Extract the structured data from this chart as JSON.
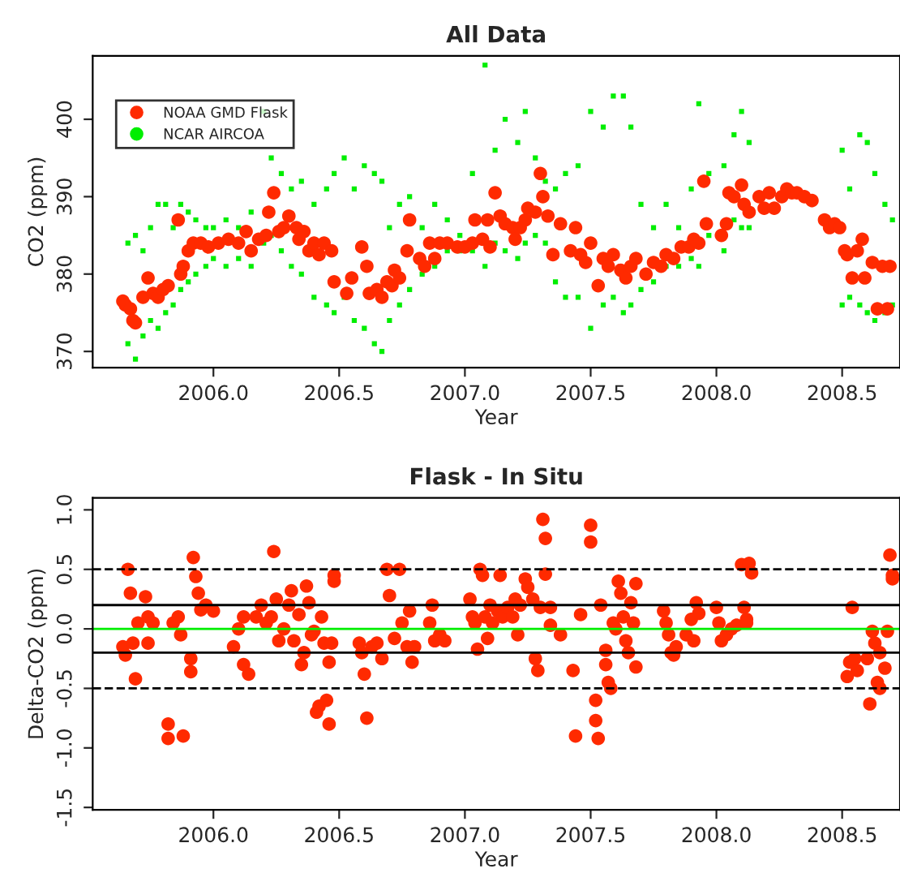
{
  "chart_data": [
    {
      "type": "scatter",
      "title": "All Data",
      "xlabel": "Year",
      "ylabel": "CO2 (ppm)",
      "xlim": [
        2005.52,
        2008.73
      ],
      "ylim": [
        367.9,
        408.2
      ],
      "xticks": [
        {
          "value": 2006.0,
          "label": "2006.0"
        },
        {
          "value": 2006.5,
          "label": "2006.5"
        },
        {
          "value": 2007.0,
          "label": "2007.0"
        },
        {
          "value": 2007.5,
          "label": "2007.5"
        },
        {
          "value": 2008.0,
          "label": "2008.0"
        },
        {
          "value": 2008.5,
          "label": "2008.5"
        }
      ],
      "yticks": [
        370,
        380,
        390,
        400
      ],
      "grid": false,
      "legend": "top left",
      "series": [
        {
          "name": "NCAR AIRCOA",
          "color": "#00ee00",
          "marker": "square",
          "x": [
            2005.66,
            2005.66,
            2005.69,
            2005.69,
            2005.72,
            2005.72,
            2005.75,
            2005.75,
            2005.78,
            2005.78,
            2005.81,
            2005.81,
            2005.84,
            2005.84,
            2005.87,
            2005.87,
            2005.9,
            2005.9,
            2005.93,
            2005.93,
            2005.97,
            2005.97,
            2006.0,
            2006.0,
            2006.05,
            2006.05,
            2006.1,
            2006.1,
            2006.15,
            2006.15,
            2006.2,
            2006.2,
            2006.23,
            2006.23,
            2006.27,
            2006.27,
            2006.31,
            2006.31,
            2006.35,
            2006.35,
            2006.4,
            2006.4,
            2006.45,
            2006.45,
            2006.48,
            2006.48,
            2006.52,
            2006.52,
            2006.56,
            2006.56,
            2006.6,
            2006.6,
            2006.64,
            2006.64,
            2006.67,
            2006.67,
            2006.7,
            2006.7,
            2006.74,
            2006.74,
            2006.78,
            2006.78,
            2006.83,
            2006.83,
            2006.88,
            2006.88,
            2006.93,
            2006.93,
            2006.98,
            2006.98,
            2007.03,
            2007.03,
            2007.08,
            2007.08,
            2007.12,
            2007.12,
            2007.16,
            2007.16,
            2007.21,
            2007.21,
            2007.24,
            2007.24,
            2007.28,
            2007.28,
            2007.32,
            2007.32,
            2007.36,
            2007.36,
            2007.4,
            2007.4,
            2007.45,
            2007.45,
            2007.5,
            2007.5,
            2007.55,
            2007.55,
            2007.59,
            2007.59,
            2007.63,
            2007.63,
            2007.66,
            2007.66,
            2007.7,
            2007.7,
            2007.75,
            2007.75,
            2007.8,
            2007.8,
            2007.85,
            2007.85,
            2007.9,
            2007.9,
            2007.93,
            2007.93,
            2007.97,
            2007.97,
            2008.03,
            2008.03,
            2008.07,
            2008.07,
            2008.1,
            2008.1,
            2008.13,
            2008.13,
            2008.5,
            2008.5,
            2008.53,
            2008.53,
            2008.57,
            2008.57,
            2008.6,
            2008.6,
            2008.63,
            2008.63,
            2008.67,
            2008.67,
            2008.7,
            2008.7
          ],
          "values": [
            371,
            384,
            369,
            385,
            372,
            383,
            374,
            386,
            373,
            389,
            375,
            389,
            376,
            386,
            378,
            389,
            379,
            388,
            380,
            387,
            381,
            386,
            382,
            386,
            381,
            387,
            382,
            386,
            381,
            388,
            384,
            401,
            385,
            395,
            383,
            393,
            381,
            391,
            380,
            392,
            377,
            389,
            376,
            391,
            375,
            393,
            377,
            395,
            374,
            391,
            373,
            394,
            371,
            393,
            370,
            392,
            374,
            386,
            376,
            389,
            378,
            390,
            380,
            386,
            381,
            389,
            383,
            387,
            383,
            385,
            383,
            393,
            381,
            407,
            384,
            396,
            383,
            400,
            382,
            397,
            384,
            401,
            385,
            395,
            384,
            392,
            379,
            391,
            377,
            393,
            377,
            394,
            373,
            401,
            376,
            399,
            377,
            403,
            375,
            403,
            376,
            399,
            378,
            389,
            379,
            386,
            381,
            389,
            381,
            386,
            382,
            391,
            381,
            402,
            385,
            393,
            383,
            394,
            387,
            398,
            386,
            401,
            386,
            397,
            376,
            396,
            377,
            391,
            376,
            398,
            375,
            397,
            374,
            393,
            375,
            389,
            376,
            387
          ]
        },
        {
          "name": "NOAA GMD Flask",
          "color": "#ff2a00",
          "marker": "circle",
          "x": [
            2005.64,
            2005.65,
            2005.67,
            2005.68,
            2005.69,
            2005.72,
            2005.74,
            2005.76,
            2005.78,
            2005.8,
            2005.82,
            2005.86,
            2005.87,
            2005.88,
            2005.9,
            2005.92,
            2005.95,
            2005.98,
            2006.02,
            2006.06,
            2006.1,
            2006.13,
            2006.15,
            2006.18,
            2006.21,
            2006.22,
            2006.24,
            2006.26,
            2006.28,
            2006.3,
            2006.33,
            2006.34,
            2006.36,
            2006.38,
            2006.4,
            2006.42,
            2006.44,
            2006.47,
            2006.48,
            2006.53,
            2006.55,
            2006.59,
            2006.61,
            2006.62,
            2006.65,
            2006.67,
            2006.69,
            2006.71,
            2006.72,
            2006.74,
            2006.78,
            2006.77,
            2006.82,
            2006.84,
            2006.86,
            2006.88,
            2006.9,
            2006.93,
            2006.97,
            2007.0,
            2007.03,
            2007.04,
            2007.07,
            2007.09,
            2007.1,
            2007.12,
            2007.14,
            2007.16,
            2007.19,
            2007.2,
            2007.22,
            2007.24,
            2007.25,
            2007.28,
            2007.3,
            2007.31,
            2007.33,
            2007.35,
            2007.38,
            2007.42,
            2007.44,
            2007.46,
            2007.48,
            2007.5,
            2007.53,
            2007.55,
            2007.57,
            2007.59,
            2007.62,
            2007.64,
            2007.66,
            2007.68,
            2007.72,
            2007.75,
            2007.78,
            2007.8,
            2007.83,
            2007.86,
            2007.89,
            2007.91,
            2007.93,
            2007.95,
            2007.96,
            2008.02,
            2008.04,
            2008.05,
            2008.07,
            2008.1,
            2008.11,
            2008.13,
            2008.17,
            2008.19,
            2008.21,
            2008.23,
            2008.26,
            2008.28,
            2008.3,
            2008.32,
            2008.35,
            2008.38,
            2008.43,
            2008.45,
            2008.47,
            2008.49,
            2008.51,
            2008.52,
            2008.54,
            2008.56,
            2008.58,
            2008.59,
            2008.62,
            2008.64,
            2008.66,
            2008.68,
            2008.69
          ],
          "values": [
            376.5,
            376,
            375.5,
            374,
            373.7,
            377,
            379.5,
            377.5,
            377,
            378,
            378.5,
            387,
            380,
            381,
            383,
            384,
            384,
            383.5,
            384,
            384.5,
            384,
            385.5,
            383,
            384.5,
            385,
            388,
            390.5,
            385.5,
            386,
            387.5,
            386,
            384.5,
            385.5,
            383,
            384,
            382.5,
            384,
            383,
            379,
            377.5,
            379.5,
            383.5,
            381,
            377.5,
            378,
            377,
            379,
            378.5,
            380.5,
            379.5,
            387,
            383,
            382,
            381,
            384,
            382,
            384,
            384,
            383.5,
            383.5,
            384,
            387,
            384.5,
            387,
            383.5,
            390.5,
            387.5,
            386.5,
            386,
            384.5,
            386,
            387,
            388.5,
            388,
            393,
            390,
            387.5,
            382.5,
            386.5,
            383,
            386,
            382.5,
            381.5,
            384,
            378.5,
            382,
            381,
            382.5,
            380.5,
            379.5,
            381,
            382,
            380,
            381.5,
            381,
            382.5,
            382,
            383.5,
            383.5,
            384.5,
            384,
            392,
            386.5,
            385,
            386.5,
            390.5,
            390,
            391.5,
            389,
            388,
            390,
            388.5,
            390.5,
            388.5,
            390,
            391,
            390.5,
            390.5,
            390,
            389.5,
            387,
            386,
            386.5,
            386,
            383,
            382.5,
            379.5,
            383,
            384.5,
            379.5,
            381.5,
            375.5,
            381,
            375.5,
            381
          ]
        }
      ]
    },
    {
      "type": "scatter",
      "title": "Flask - In Situ",
      "xlabel": "Year",
      "ylabel": "Delta-CO2 (ppm)",
      "xlim": [
        2005.52,
        2008.73
      ],
      "ylim": [
        -1.52,
        1.1
      ],
      "xticks": [
        {
          "value": 2006.0,
          "label": "2006.0"
        },
        {
          "value": 2006.5,
          "label": "2006.5"
        },
        {
          "value": 2007.0,
          "label": "2007.0"
        },
        {
          "value": 2007.5,
          "label": "2007.5"
        },
        {
          "value": 2008.0,
          "label": "2008.0"
        },
        {
          "value": 2008.5,
          "label": "2008.5"
        }
      ],
      "yticks": [
        {
          "value": -1.5,
          "label": "-1.5"
        },
        {
          "value": -1.0,
          "label": "-1.0"
        },
        {
          "value": -0.5,
          "label": "-0.5"
        },
        {
          "value": 0.0,
          "label": "0.0"
        },
        {
          "value": 0.5,
          "label": "0.5"
        },
        {
          "value": 1.0,
          "label": "1.0"
        }
      ],
      "grid": false,
      "legend": false,
      "ref_lines": [
        {
          "axis": "y",
          "value": 0.5,
          "color": "#000000",
          "line_style": "dashed"
        },
        {
          "axis": "y",
          "value": 0.2,
          "color": "#000000",
          "line_style": "solid"
        },
        {
          "axis": "y",
          "value": 0,
          "color": "#00ee00",
          "line_style": "solid"
        },
        {
          "axis": "y",
          "value": -0.2,
          "color": "#000000",
          "line_style": "solid"
        },
        {
          "axis": "y",
          "value": -0.5,
          "color": "#000000",
          "line_style": "dashed"
        }
      ],
      "series": [
        {
          "color": "#ff2a00",
          "marker": "circle",
          "x": [
            2005.64,
            2005.65,
            2005.66,
            2005.67,
            2005.68,
            2005.69,
            2005.7,
            2005.73,
            2005.74,
            2005.74,
            2005.76,
            2005.82,
            2005.82,
            2005.84,
            2005.86,
            2005.87,
            2005.88,
            2005.91,
            2005.91,
            2005.92,
            2005.93,
            2005.94,
            2005.95,
            2005.97,
            2006.0,
            2006.08,
            2006.1,
            2006.12,
            2006.12,
            2006.14,
            2006.17,
            2006.19,
            2006.21,
            2006.23,
            2006.24,
            2006.25,
            2006.26,
            2006.28,
            2006.3,
            2006.31,
            2006.32,
            2006.34,
            2006.35,
            2006.36,
            2006.37,
            2006.38,
            2006.39,
            2006.4,
            2006.41,
            2006.42,
            2006.43,
            2006.44,
            2006.45,
            2006.46,
            2006.46,
            2006.47,
            2006.48,
            2006.48,
            2006.58,
            2006.59,
            2006.6,
            2006.61,
            2006.63,
            2006.65,
            2006.67,
            2006.69,
            2006.7,
            2006.72,
            2006.74,
            2006.75,
            2006.77,
            2006.78,
            2006.79,
            2006.8,
            2006.86,
            2006.87,
            2006.88,
            2006.9,
            2006.92,
            2007.02,
            2007.03,
            2007.04,
            2007.05,
            2007.06,
            2007.07,
            2007.08,
            2007.09,
            2007.1,
            2007.11,
            2007.13,
            2007.14,
            2007.15,
            2007.17,
            2007.19,
            2007.2,
            2007.21,
            2007.22,
            2007.24,
            2007.25,
            2007.27,
            2007.28,
            2007.29,
            2007.3,
            2007.31,
            2007.32,
            2007.32,
            2007.34,
            2007.34,
            2007.38,
            2007.43,
            2007.44,
            2007.46,
            2007.5,
            2007.5,
            2007.52,
            2007.52,
            2007.53,
            2007.54,
            2007.56,
            2007.56,
            2007.57,
            2007.58,
            2007.59,
            2007.6,
            2007.61,
            2007.62,
            2007.63,
            2007.64,
            2007.65,
            2007.66,
            2007.67,
            2007.68,
            2007.68,
            2007.79,
            2007.8,
            2007.81,
            2007.82,
            2007.83,
            2007.84,
            2007.88,
            2007.9,
            2007.91,
            2007.92,
            2007.93,
            2008.0,
            2008.01,
            2008.02,
            2008.04,
            2008.06,
            2008.08,
            2008.1,
            2008.11,
            2008.12,
            2008.13,
            2008.14,
            2008.12,
            2008.52,
            2008.53,
            2008.54,
            2008.55,
            2008.56,
            2008.6,
            2008.61,
            2008.62,
            2008.63,
            2008.64,
            2008.65,
            2008.65,
            2008.67,
            2008.68,
            2008.69,
            2008.7,
            2008.7
          ],
          "values": [
            -0.15,
            -0.22,
            0.5,
            0.3,
            -0.12,
            -0.42,
            0.05,
            0.27,
            -0.12,
            0.1,
            0.05,
            -0.8,
            -0.92,
            0.05,
            0.1,
            -0.05,
            -0.9,
            -0.25,
            -0.36,
            0.6,
            0.44,
            0.3,
            0.16,
            0.2,
            0.15,
            -0.15,
            0.0,
            -0.3,
            0.1,
            -0.38,
            0.1,
            0.2,
            0.05,
            0.1,
            0.65,
            0.25,
            -0.1,
            0.0,
            0.2,
            0.32,
            -0.1,
            0.12,
            -0.3,
            -0.2,
            0.36,
            0.22,
            -0.05,
            -0.02,
            -0.7,
            -0.65,
            0.1,
            -0.12,
            -0.6,
            -0.8,
            -0.28,
            -0.12,
            0.45,
            0.4,
            -0.12,
            -0.2,
            -0.38,
            -0.75,
            -0.15,
            -0.12,
            -0.25,
            0.5,
            0.28,
            -0.08,
            0.5,
            0.05,
            -0.15,
            0.15,
            -0.28,
            -0.15,
            0.05,
            0.2,
            -0.1,
            -0.05,
            -0.1,
            0.25,
            0.1,
            0.05,
            -0.17,
            0.5,
            0.45,
            0.1,
            -0.08,
            0.2,
            0.05,
            0.15,
            0.45,
            0.1,
            0.18,
            0.1,
            0.25,
            -0.05,
            0.2,
            0.42,
            0.35,
            0.25,
            -0.25,
            -0.35,
            0.18,
            0.92,
            0.76,
            0.46,
            0.18,
            0.03,
            -0.05,
            -0.35,
            -0.9,
            0.12,
            0.87,
            0.73,
            -0.6,
            -0.77,
            -0.92,
            0.2,
            -0.18,
            -0.3,
            -0.45,
            -0.5,
            0.05,
            0.0,
            0.4,
            0.3,
            0.1,
            -0.1,
            -0.2,
            0.22,
            0.05,
            0.38,
            -0.32,
            0.15,
            0.05,
            -0.05,
            -0.2,
            -0.22,
            -0.15,
            -0.05,
            0.08,
            -0.1,
            0.22,
            0.13,
            0.18,
            0.05,
            -0.1,
            -0.05,
            0.0,
            0.03,
            0.54,
            0.18,
            0.08,
            0.55,
            0.47,
            0.05,
            -0.4,
            -0.28,
            0.18,
            -0.25,
            -0.35,
            -0.25,
            -0.63,
            -0.02,
            -0.12,
            -0.45,
            -0.5,
            -0.2,
            -0.33,
            -0.02,
            0.62,
            0.45,
            0.42
          ]
        }
      ]
    }
  ]
}
